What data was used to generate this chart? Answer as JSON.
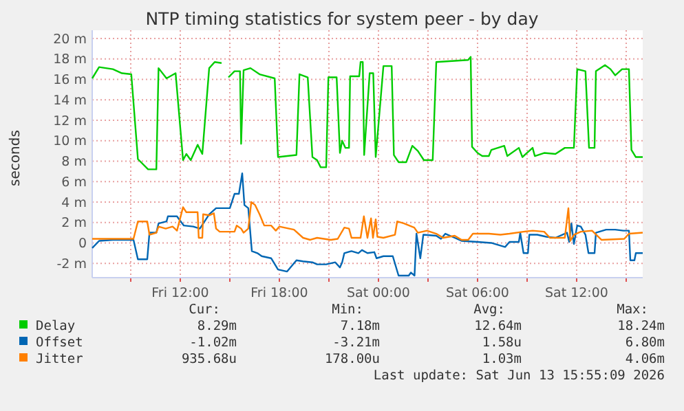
{
  "chart_data": {
    "type": "line",
    "title": "NTP timing statistics for system peer - by day",
    "ylabel": "seconds",
    "xlim": [
      "2026-06-12T06:40",
      "2026-06-13T16:00"
    ],
    "xticks": [
      {
        "value": "2026-06-12T09:00",
        "label": null
      },
      {
        "value": "2026-06-12T12:00",
        "label": "Fri 12:00"
      },
      {
        "value": "2026-06-12T15:00",
        "label": null
      },
      {
        "value": "2026-06-12T18:00",
        "label": "Fri 18:00"
      },
      {
        "value": "2026-06-12T21:00",
        "label": null
      },
      {
        "value": "2026-06-13T00:00",
        "label": "Sat 00:00"
      },
      {
        "value": "2026-06-13T03:00",
        "label": null
      },
      {
        "value": "2026-06-13T06:00",
        "label": "Sat 06:00"
      },
      {
        "value": "2026-06-13T09:00",
        "label": null
      },
      {
        "value": "2026-06-13T12:00",
        "label": "Sat 12:00"
      },
      {
        "value": "2026-06-13T15:00",
        "label": null
      }
    ],
    "ylim": [
      -3.4,
      20
    ],
    "yticks": [
      {
        "value": -2,
        "label": "-2 m"
      },
      0,
      {
        "value": 2,
        "label": "2 m"
      },
      {
        "value": 4,
        "label": "4 m"
      },
      {
        "value": 6,
        "label": "6 m"
      },
      {
        "value": 8,
        "label": "8 m"
      },
      {
        "value": 10,
        "label": "10 m"
      },
      {
        "value": 12,
        "label": "12 m"
      },
      {
        "value": 14,
        "label": "14 m"
      },
      {
        "value": 16,
        "label": "16 m"
      },
      {
        "value": 18,
        "label": "18 m"
      },
      {
        "value": 20,
        "label": "20 m"
      }
    ],
    "grid": true,
    "legend": "bottom",
    "series": [
      {
        "name": "Delay",
        "color": "#00cc00",
        "x": [
          "2026-06-12T06:40",
          "2026-06-12T07:05",
          "2026-06-12T07:55",
          "2026-06-12T08:28",
          "2026-06-12T09:02",
          "2026-06-12T09:26",
          "2026-06-12T10:03",
          "2026-06-12T10:33",
          "2026-06-12T10:41",
          "2026-06-12T11:10",
          "2026-06-12T11:43",
          "2026-06-12T12:10",
          "2026-06-12T12:22",
          "2026-06-12T12:38",
          "2026-06-12T13:03",
          "2026-06-12T13:20",
          "2026-06-12T13:45",
          "2026-06-12T14:05",
          "2026-06-12T14:30",
          "2026-06-12T14:43",
          "2026-06-12T14:55",
          "2026-06-12T15:17",
          "2026-06-12T15:37",
          "2026-06-12T15:41",
          "2026-06-12T15:50",
          "2026-06-12T16:15",
          "2026-06-12T16:48",
          "2026-06-12T17:43",
          "2026-06-12T17:55",
          "2026-06-12T18:28",
          "2026-06-12T19:02",
          "2026-06-12T19:13",
          "2026-06-12T19:43",
          "2026-06-12T20:00",
          "2026-06-12T20:17",
          "2026-06-12T20:30",
          "2026-06-12T20:50",
          "2026-06-12T20:58",
          "2026-06-12T21:28",
          "2026-06-12T21:40",
          "2026-06-12T21:48",
          "2026-06-12T22:00",
          "2026-06-12T22:13",
          "2026-06-12T22:17",
          "2026-06-12T22:50",
          "2026-06-12T22:55",
          "2026-06-12T23:03",
          "2026-06-12T23:08",
          "2026-06-12T23:28",
          "2026-06-12T23:41",
          "2026-06-12T23:50",
          "2026-06-13T00:18",
          "2026-06-13T00:48",
          "2026-06-13T00:56",
          "2026-06-13T01:13",
          "2026-06-13T01:41",
          "2026-06-13T02:03",
          "2026-06-13T02:23",
          "2026-06-13T02:45",
          "2026-06-13T03:17",
          "2026-06-13T03:30",
          "2026-06-13T05:26",
          "2026-06-13T05:35",
          "2026-06-13T05:40",
          "2026-06-13T06:00",
          "2026-06-13T06:17",
          "2026-06-13T06:41",
          "2026-06-13T06:50",
          "2026-06-13T07:37",
          "2026-06-13T07:48",
          "2026-06-13T08:30",
          "2026-06-13T08:43",
          "2026-06-13T09:20",
          "2026-06-13T09:28",
          "2026-06-13T10:02",
          "2026-06-13T10:43",
          "2026-06-13T11:17",
          "2026-06-13T11:50",
          "2026-06-13T12:02",
          "2026-06-13T12:32",
          "2026-06-13T12:45",
          "2026-06-13T13:05",
          "2026-06-13T13:10",
          "2026-06-13T13:43",
          "2026-06-13T14:03",
          "2026-06-13T14:20",
          "2026-06-13T14:45",
          "2026-06-13T15:10",
          "2026-06-13T15:19",
          "2026-06-13T15:35",
          "2026-06-13T16:00"
        ],
        "values": [
          16.1,
          17.2,
          17.0,
          16.6,
          16.5,
          8.2,
          7.2,
          7.2,
          17.1,
          16.1,
          16.6,
          8.1,
          8.7,
          8.1,
          9.6,
          8.7,
          17.1,
          17.7,
          17.6,
          null,
          16.2,
          16.8,
          16.8,
          9.7,
          16.9,
          17.1,
          16.5,
          16.1,
          8.4,
          8.5,
          8.6,
          16.5,
          16.2,
          8.4,
          8.1,
          7.4,
          7.4,
          16.2,
          16.2,
          8.8,
          10.0,
          9.3,
          9.3,
          16.3,
          16.3,
          17.7,
          17.7,
          8.6,
          16.6,
          16.6,
          8.4,
          17.3,
          17.3,
          8.6,
          7.9,
          7.9,
          9.5,
          9.0,
          8.1,
          8.1,
          17.7,
          17.9,
          18.2,
          9.4,
          8.8,
          8.5,
          8.5,
          9.1,
          9.5,
          8.5,
          9.3,
          8.4,
          9.3,
          8.5,
          8.8,
          8.7,
          9.3,
          9.3,
          17.0,
          16.8,
          9.3,
          9.3,
          16.8,
          17.4,
          17.0,
          16.4,
          17.0,
          17.0,
          9.1,
          8.4,
          8.4
        ]
      },
      {
        "name": "Offset",
        "color": "#0066b3",
        "x": [
          "2026-06-12T06:40",
          "2026-06-12T07:05",
          "2026-06-12T07:55",
          "2026-06-12T09:10",
          "2026-06-12T09:26",
          "2026-06-12T10:00",
          "2026-06-12T10:08",
          "2026-06-12T10:33",
          "2026-06-12T10:41",
          "2026-06-12T11:10",
          "2026-06-12T11:15",
          "2026-06-12T11:48",
          "2026-06-12T11:56",
          "2026-06-12T12:13",
          "2026-06-12T12:47",
          "2026-06-12T13:11",
          "2026-06-12T13:45",
          "2026-06-12T14:10",
          "2026-06-12T15:00",
          "2026-06-12T15:17",
          "2026-06-12T15:33",
          "2026-06-12T15:45",
          "2026-06-12T15:53",
          "2026-06-12T16:07",
          "2026-06-12T16:20",
          "2026-06-12T16:40",
          "2026-06-12T16:56",
          "2026-06-12T17:30",
          "2026-06-12T17:55",
          "2026-06-12T18:28",
          "2026-06-12T19:02",
          "2026-06-12T19:26",
          "2026-06-12T20:00",
          "2026-06-12T20:17",
          "2026-06-12T20:50",
          "2026-06-12T21:23",
          "2026-06-12T21:40",
          "2026-06-12T21:48",
          "2026-06-12T21:56",
          "2026-06-12T22:22",
          "2026-06-12T22:47",
          "2026-06-12T23:00",
          "2026-06-12T23:20",
          "2026-06-12T23:45",
          "2026-06-12T23:53",
          "2026-06-13T00:18",
          "2026-06-13T00:52",
          "2026-06-13T01:13",
          "2026-06-13T01:50",
          "2026-06-13T01:58",
          "2026-06-13T02:11",
          "2026-06-13T02:18",
          "2026-06-13T02:32",
          "2026-06-13T02:43",
          "2026-06-13T03:30",
          "2026-06-13T03:47",
          "2026-06-13T04:03",
          "2026-06-13T04:37",
          "2026-06-13T05:02",
          "2026-06-13T06:00",
          "2026-06-13T06:50",
          "2026-06-13T07:40",
          "2026-06-13T07:56",
          "2026-06-13T08:30",
          "2026-06-13T08:35",
          "2026-06-13T08:47",
          "2026-06-13T09:03",
          "2026-06-13T09:08",
          "2026-06-13T09:37",
          "2026-06-13T10:10",
          "2026-06-13T10:43",
          "2026-06-13T11:25",
          "2026-06-13T11:33",
          "2026-06-13T11:41",
          "2026-06-13T11:50",
          "2026-06-13T12:02",
          "2026-06-13T12:15",
          "2026-06-13T12:32",
          "2026-06-13T12:43",
          "2026-06-13T13:05",
          "2026-06-13T13:10",
          "2026-06-13T13:47",
          "2026-06-13T14:20",
          "2026-06-13T14:50",
          "2026-06-13T15:10",
          "2026-06-13T15:15",
          "2026-06-13T15:30",
          "2026-06-13T15:35",
          "2026-06-13T16:00"
        ],
        "values": [
          -0.5,
          0.2,
          0.3,
          0.3,
          -1.6,
          -1.6,
          1.0,
          1.0,
          1.9,
          2.1,
          2.6,
          2.6,
          2.3,
          1.7,
          1.6,
          1.4,
          2.8,
          3.4,
          3.4,
          4.8,
          4.8,
          6.8,
          3.7,
          3.4,
          -0.8,
          -1.0,
          -1.3,
          -1.5,
          -2.6,
          -2.8,
          -1.7,
          -1.8,
          -1.9,
          -2.1,
          -2.1,
          -1.9,
          -2.4,
          -1.9,
          -1.0,
          -0.8,
          -1.0,
          -0.7,
          -1.0,
          -0.9,
          -1.5,
          -1.3,
          -1.3,
          -3.2,
          -3.2,
          -2.9,
          -3.2,
          0.9,
          -1.5,
          0.8,
          0.7,
          0.4,
          0.9,
          0.5,
          0.2,
          0.1,
          0.0,
          -0.4,
          0.1,
          0.1,
          1.0,
          -1.0,
          -1.0,
          0.8,
          0.8,
          0.6,
          0.5,
          1.0,
          0.1,
          1.9,
          -0.1,
          1.7,
          1.6,
          0.8,
          -1.0,
          -1.0,
          1.0,
          1.3,
          1.3,
          1.2,
          1.2,
          -1.7,
          -1.7,
          -1.0,
          -1.0
        ]
      },
      {
        "name": "Jitter",
        "color": "#ff8000",
        "x": [
          "2026-06-12T06:40",
          "2026-06-12T09:10",
          "2026-06-12T09:26",
          "2026-06-12T10:00",
          "2026-06-12T10:08",
          "2026-06-12T10:33",
          "2026-06-12T10:41",
          "2026-06-12T11:07",
          "2026-06-12T11:32",
          "2026-06-12T11:48",
          "2026-06-12T12:10",
          "2026-06-12T12:22",
          "2026-06-12T13:03",
          "2026-06-12T13:07",
          "2026-06-12T13:20",
          "2026-06-12T13:23",
          "2026-06-12T13:45",
          "2026-06-12T14:02",
          "2026-06-12T14:10",
          "2026-06-12T14:23",
          "2026-06-12T15:17",
          "2026-06-12T15:25",
          "2026-06-12T15:41",
          "2026-06-12T15:50",
          "2026-06-12T16:07",
          "2026-06-12T16:18",
          "2026-06-12T16:32",
          "2026-06-12T16:48",
          "2026-06-12T17:05",
          "2026-06-12T17:30",
          "2026-06-12T17:47",
          "2026-06-12T18:00",
          "2026-06-12T18:53",
          "2026-06-12T19:26",
          "2026-06-12T19:52",
          "2026-06-12T20:17",
          "2026-06-12T21:07",
          "2026-06-12T21:32",
          "2026-06-12T21:56",
          "2026-06-12T22:13",
          "2026-06-12T22:22",
          "2026-06-12T22:55",
          "2026-06-12T23:07",
          "2026-06-12T23:20",
          "2026-06-12T23:33",
          "2026-06-12T23:40",
          "2026-06-12T23:50",
          "2026-06-12T23:56",
          "2026-06-13T00:18",
          "2026-06-13T01:00",
          "2026-06-13T01:08",
          "2026-06-13T01:33",
          "2026-06-13T02:10",
          "2026-06-13T02:23",
          "2026-06-13T02:56",
          "2026-06-13T03:30",
          "2026-06-13T03:55",
          "2026-06-13T04:37",
          "2026-06-13T05:02",
          "2026-06-13T05:26",
          "2026-06-13T05:43",
          "2026-06-13T06:41",
          "2026-06-13T07:23",
          "2026-06-13T07:56",
          "2026-06-13T08:47",
          "2026-06-13T09:20",
          "2026-06-13T10:02",
          "2026-06-13T10:23",
          "2026-06-13T11:17",
          "2026-06-13T11:30",
          "2026-06-13T11:37",
          "2026-06-13T11:50",
          "2026-06-13T12:15",
          "2026-06-13T12:56",
          "2026-06-13T13:30",
          "2026-06-13T14:53",
          "2026-06-13T15:10",
          "2026-06-13T16:00"
        ],
        "values": [
          0.4,
          0.4,
          2.1,
          2.1,
          0.8,
          1.0,
          1.6,
          1.4,
          1.6,
          1.2,
          3.5,
          3.0,
          3.0,
          0.5,
          0.5,
          2.8,
          2.7,
          2.9,
          1.4,
          1.1,
          1.1,
          1.7,
          1.4,
          1.0,
          1.4,
          4.0,
          3.7,
          2.8,
          1.7,
          1.7,
          1.2,
          1.6,
          1.3,
          0.5,
          0.3,
          0.5,
          0.3,
          0.4,
          1.5,
          1.4,
          0.5,
          0.5,
          2.6,
          0.5,
          2.4,
          0.5,
          2.3,
          0.6,
          0.5,
          0.8,
          2.1,
          1.9,
          1.5,
          1.0,
          1.2,
          0.9,
          0.5,
          0.7,
          0.3,
          0.3,
          0.9,
          0.9,
          0.8,
          0.9,
          1.1,
          1.2,
          1.1,
          0.5,
          0.5,
          3.4,
          0.2,
          0.8,
          1.1,
          1.2,
          0.3,
          0.4,
          0.9,
          1.0
        ]
      }
    ],
    "annotations": [
      "Cur:",
      "Min:",
      "Avg:",
      "Max:",
      "8.29m",
      "7.18m",
      "12.64m",
      "18.24m",
      "-1.02m",
      "-3.21m",
      "1.58u",
      "6.80m",
      "935.68u",
      "178.00u",
      "1.03m",
      "4.06m",
      "Last update: Sat Jun 13 15:55:09 2026"
    ]
  }
}
